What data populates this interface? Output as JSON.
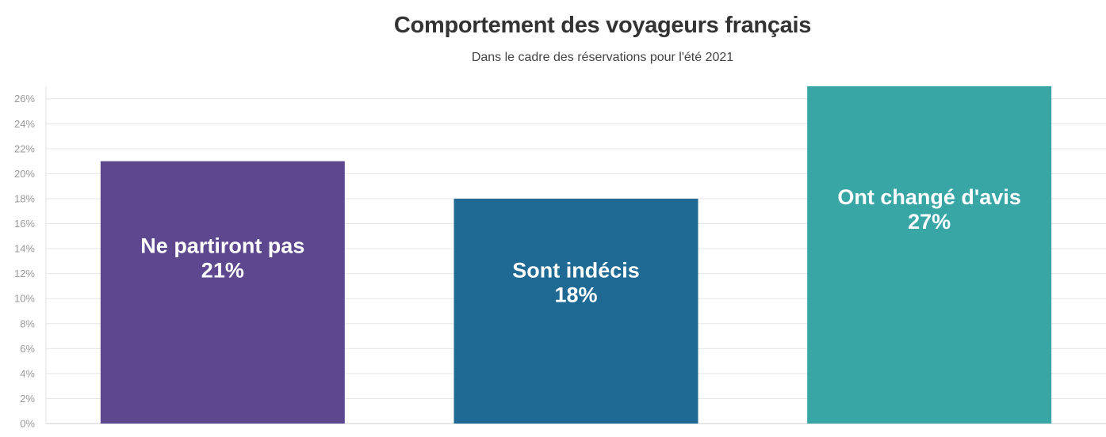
{
  "title": "Comportement des voyageurs français",
  "subtitle": "Dans le cadre des réservations pour l'été 2021",
  "chart_data": {
    "type": "bar",
    "title": "Comportement des voyageurs français",
    "subtitle": "Dans le cadre des réservations pour l'été 2021",
    "categories": [
      "Ne partiront pas",
      "Sont indécis",
      "Ont changé d'avis"
    ],
    "values": [
      21,
      18,
      27
    ],
    "value_labels": [
      "21%",
      "18%",
      "27%"
    ],
    "colors": [
      "#5d478f",
      "#1f6a94",
      "#38a6a5"
    ],
    "ylim": [
      0,
      27
    ],
    "yticks": [
      0,
      2,
      4,
      6,
      8,
      10,
      12,
      14,
      16,
      18,
      20,
      22,
      24,
      26
    ],
    "ytick_labels": [
      "0%",
      "2%",
      "4%",
      "6%",
      "8%",
      "10%",
      "12%",
      "14%",
      "16%",
      "18%",
      "20%",
      "22%",
      "24%",
      "26%"
    ],
    "grid": true,
    "legend": false,
    "xlabel": "",
    "ylabel": ""
  }
}
